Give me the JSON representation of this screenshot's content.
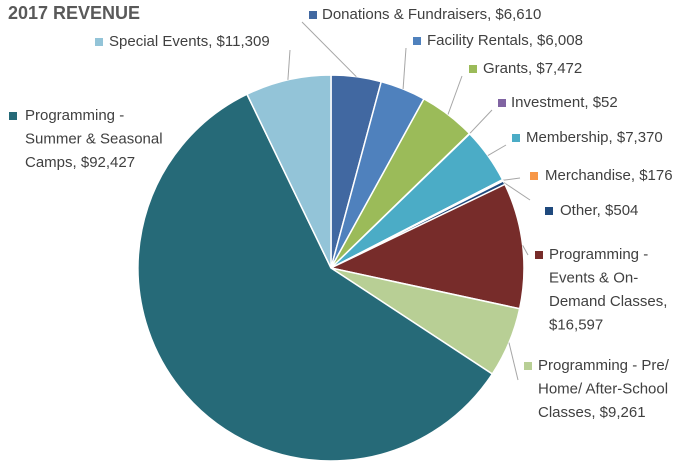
{
  "chart_data": {
    "type": "pie",
    "title": "2017 REVENUE",
    "labels": [
      [
        "Donations & Fundraisers, $6,610"
      ],
      [
        "Facility Rentals, $6,008"
      ],
      [
        "Grants, $7,472"
      ],
      [
        "Investment, $52"
      ],
      [
        "Membership, $7,370"
      ],
      [
        "Merchandise, $176"
      ],
      [
        "Other, $504"
      ],
      [
        "Programming -",
        "Events & On-",
        "Demand Classes,",
        "$16,597"
      ],
      [
        "Programming - Pre/",
        "Home/ After-School",
        "Classes, $9,261"
      ],
      [
        "Programming -",
        "Summer & Seasonal",
        "Camps, $92,427"
      ],
      [
        "Special Events, $11,309"
      ]
    ],
    "values": [
      6610,
      6008,
      7472,
      52,
      7370,
      176,
      504,
      16597,
      9261,
      92427,
      11309
    ],
    "colors": [
      "#4168a1",
      "#4f81bd",
      "#9bbb59",
      "#8064a2",
      "#4bacc6",
      "#f79646",
      "#1f497d",
      "#772c2a",
      "#b8cf95",
      "#266a78",
      "#93c4d8"
    ]
  }
}
